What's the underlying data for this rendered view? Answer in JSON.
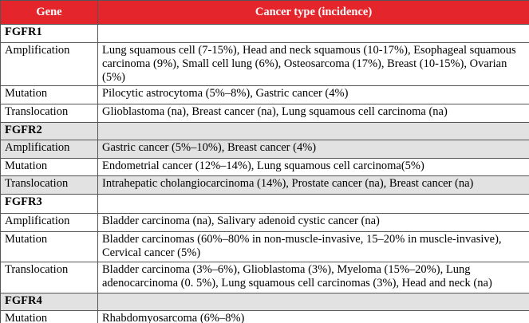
{
  "table": {
    "header": [
      "Gene",
      "Cancer type (incidence)"
    ],
    "rows": [
      [
        "FGFR1"
      ],
      [
        "Amplification",
        "Lung squamous cell (7-15%), Head and neck squamous (10-17%), Esophageal squamous carcinoma (9%), Small cell lung (6%), Osteosarcoma (17%), Breast (10-15%), Ovarian (5%)"
      ],
      [
        "Mutation",
        "Pilocytic astrocytoma (5%–8%), Gastric cancer (4%)"
      ],
      [
        "Translocation",
        "Glioblastoma (na), Breast cancer (na), Lung squamous cell carcinoma (na)"
      ],
      [
        "FGFR2"
      ],
      [
        "Amplification",
        "Gastric cancer (5%–10%), Breast cancer (4%)"
      ],
      [
        "Mutation",
        "Endometrial cancer (12%–14%), Lung squamous cell carcinoma(5%)"
      ],
      [
        "Translocation",
        "Intrahepatic cholangiocarcinoma (14%), Prostate cancer (na), Breast cancer (na)"
      ],
      [
        "FGFR3"
      ],
      [
        "Amplification",
        "Bladder carcinoma (na), Salivary adenoid cystic cancer (na)"
      ],
      [
        "Mutation",
        "Bladder carcinomas (60%–80% in non-muscle-invasive, 15–20% in muscle-invasive), Cervical cancer (5%)"
      ],
      [
        "Translocation",
        "Bladder carcinoma (3%–6%), Glioblastoma (3%), Myeloma (15%–20%), Lung adenocarcinoma (0. 5%), Lung squamous cell carcinomas (3%), Head and neck (na)"
      ],
      [
        "FGFR4"
      ],
      [
        "Mutation",
        "Rhabdomyosarcoma (6%–8%)"
      ]
    ]
  }
}
